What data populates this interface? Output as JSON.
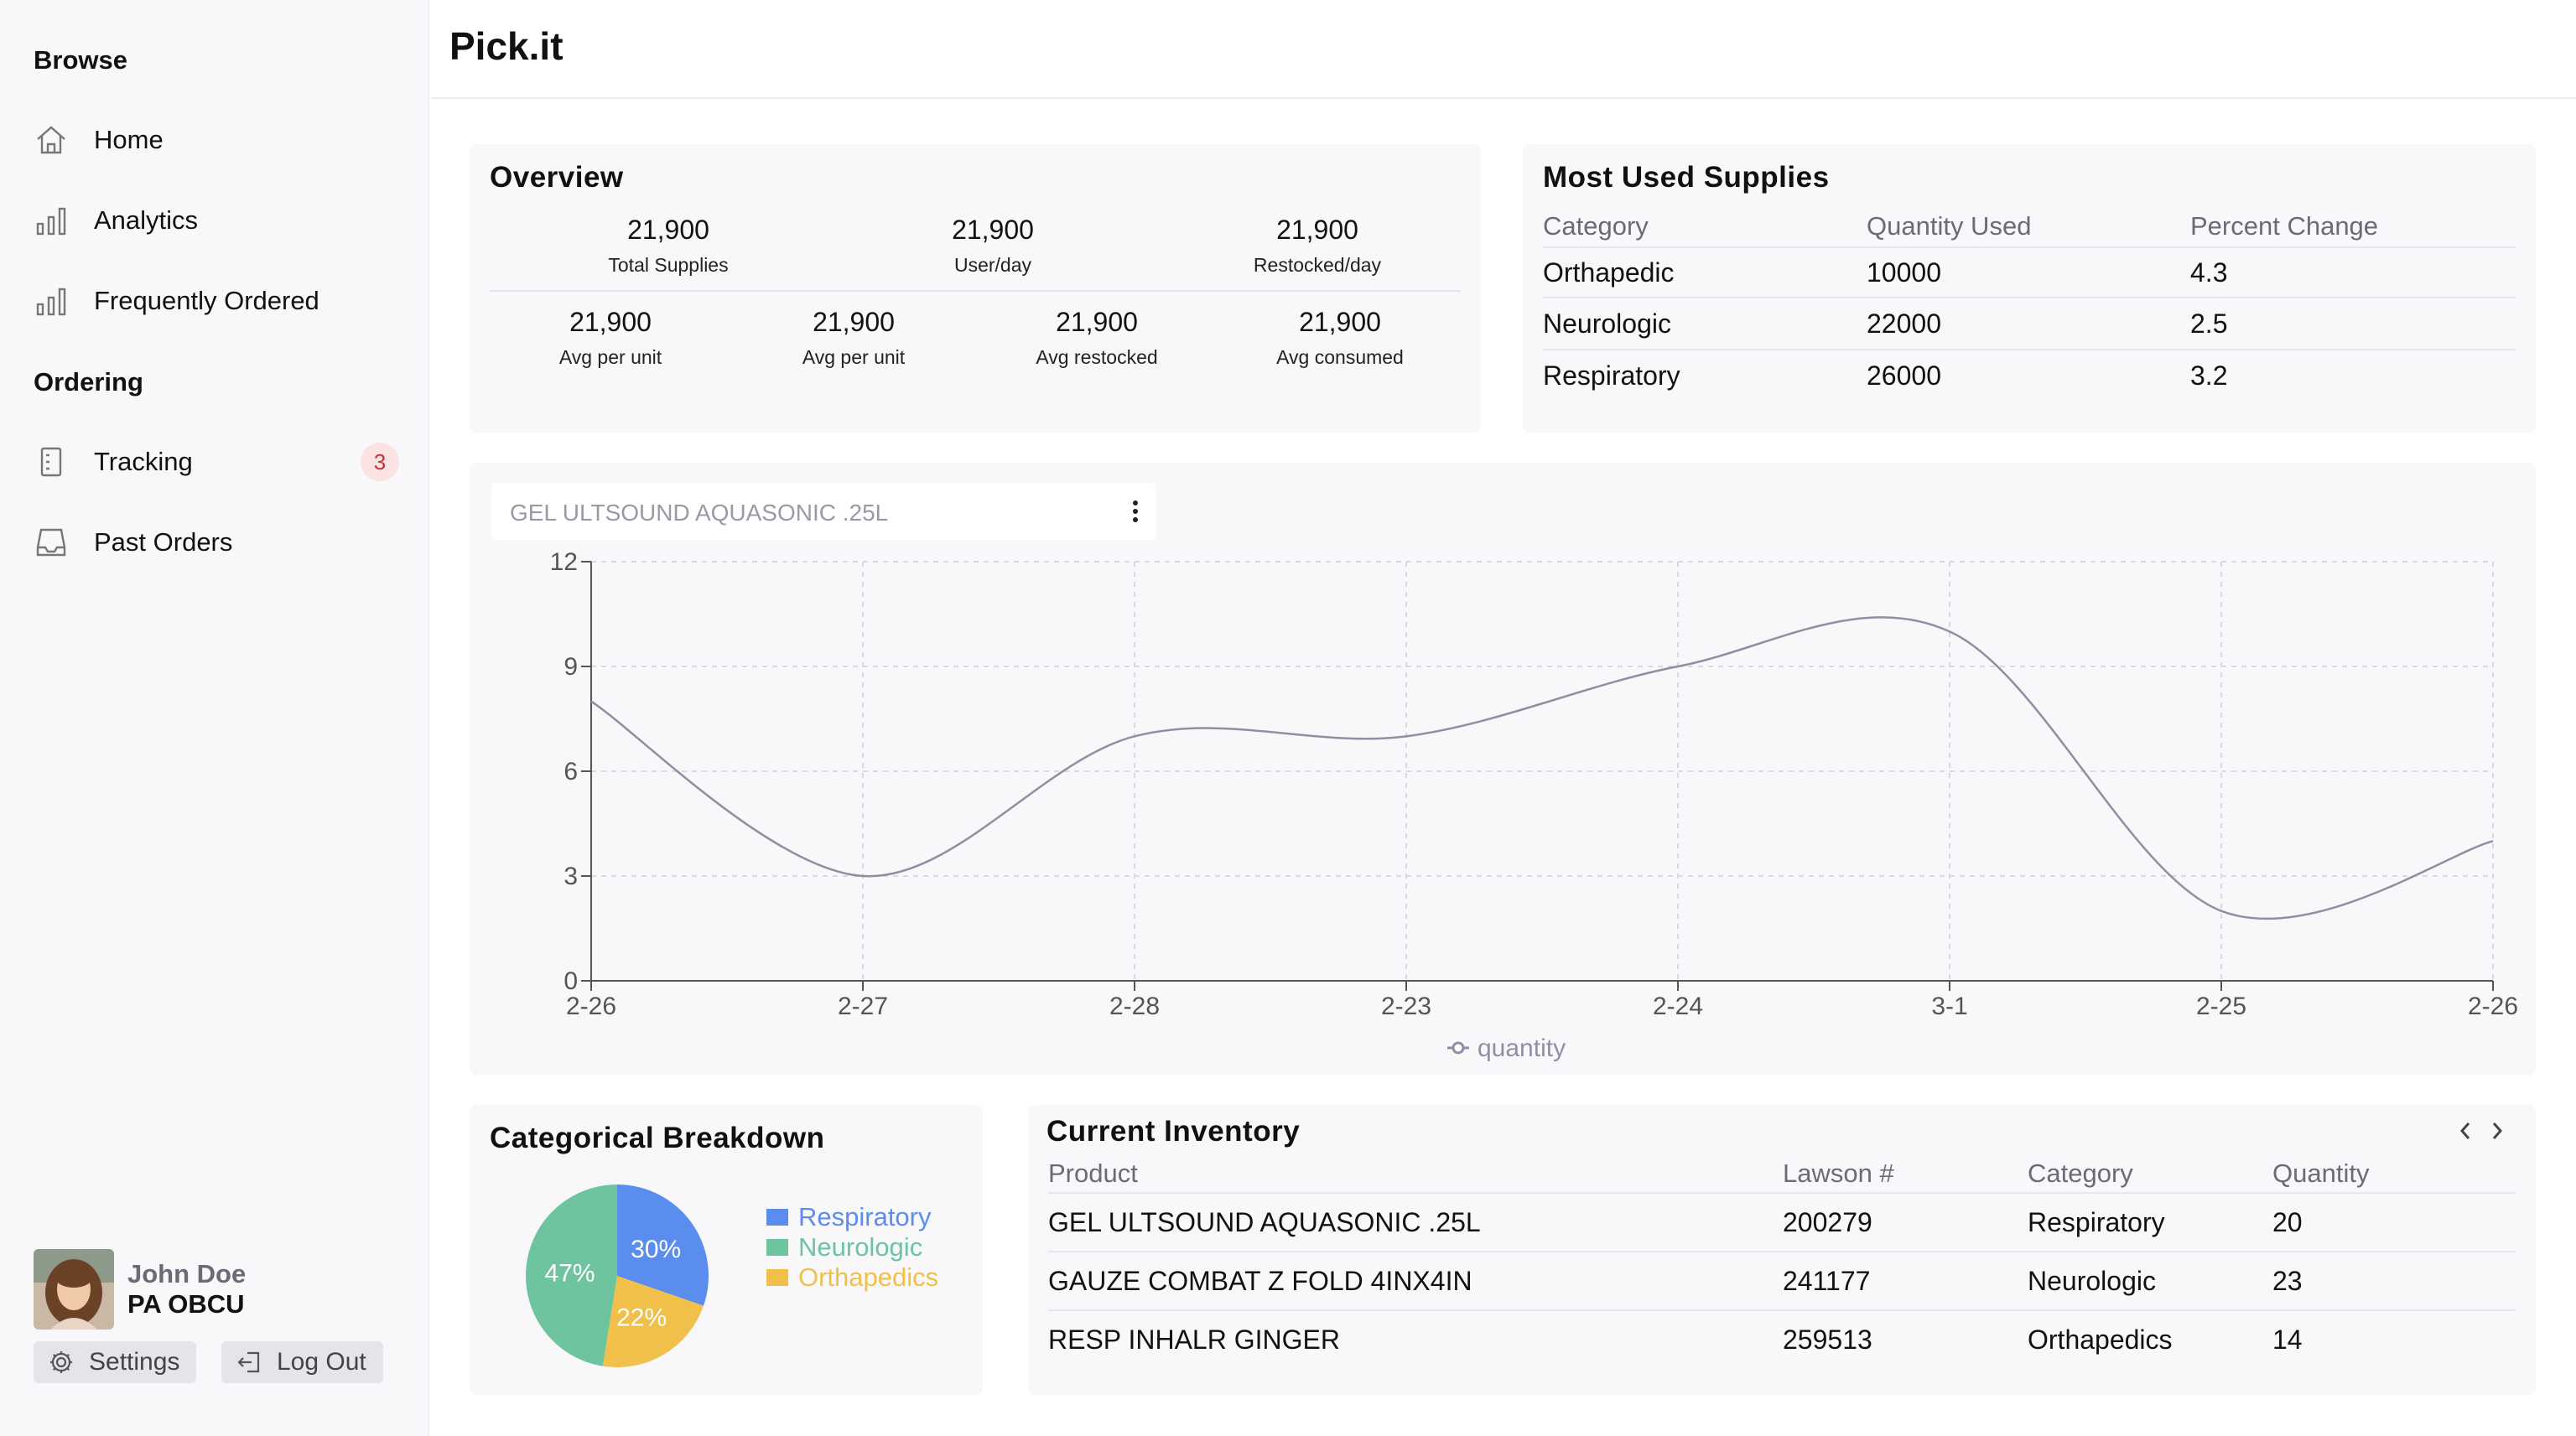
{
  "app": {
    "title": "Pick.it"
  },
  "sidebar": {
    "browse_heading": "Browse",
    "ordering_heading": "Ordering",
    "items": [
      {
        "label": "Home",
        "icon": "home-icon"
      },
      {
        "label": "Analytics",
        "icon": "bar-chart-icon"
      },
      {
        "label": "Frequently Ordered",
        "icon": "bar-chart-icon"
      },
      {
        "label": "Tracking",
        "icon": "receipt-icon",
        "badge": "3"
      },
      {
        "label": "Past Orders",
        "icon": "inbox-icon"
      }
    ],
    "user": {
      "name": "John Doe",
      "role": "PA OBCU"
    },
    "settings_label": "Settings",
    "logout_label": "Log Out"
  },
  "overview": {
    "title": "Overview",
    "top": [
      {
        "value": "21,900",
        "label": "Total Supplies"
      },
      {
        "value": "21,900",
        "label": "User/day"
      },
      {
        "value": "21,900",
        "label": "Restocked/day"
      }
    ],
    "bottom": [
      {
        "value": "21,900",
        "label": "Avg per unit"
      },
      {
        "value": "21,900",
        "label": "Avg per unit"
      },
      {
        "value": "21,900",
        "label": "Avg restocked"
      },
      {
        "value": "21,900",
        "label": "Avg consumed"
      }
    ]
  },
  "most_used": {
    "title": "Most Used Supplies",
    "headers": [
      "Category",
      "Quantity Used",
      "Percent Change"
    ],
    "rows": [
      [
        "Orthapedic",
        "10000",
        "4.3"
      ],
      [
        "Neurologic",
        "22000",
        "2.5"
      ],
      [
        "Respiratory",
        "26000",
        "3.2"
      ]
    ]
  },
  "chart_header": {
    "title": "GEL ULTSOUND AQUASONIC .25L",
    "menu_icon": "kebab-menu-icon"
  },
  "chart_data": {
    "type": "line",
    "title": "GEL ULTSOUND AQUASONIC .25L",
    "categories": [
      "2-26",
      "2-27",
      "2-28",
      "2-23",
      "2-24",
      "3-1",
      "2-25",
      "2-26"
    ],
    "series": [
      {
        "name": "quantity",
        "values": [
          8,
          3,
          7,
          7,
          9,
          10,
          2,
          4
        ]
      }
    ],
    "yticks": [
      "0",
      "3",
      "6",
      "9",
      "12"
    ],
    "ylim": [
      0,
      12
    ],
    "grid": true,
    "legend": "bottom",
    "line_color": "#8f8fa3"
  },
  "breakdown": {
    "title": "Categorical Breakdown",
    "chart_data": {
      "type": "pie",
      "slices": [
        {
          "name": "Respiratory",
          "value": 30,
          "label": "30%",
          "color": "#5b8def"
        },
        {
          "name": "Orthapedics",
          "value": 22,
          "label": "22%",
          "color": "#f0c04a"
        },
        {
          "name": "Neurologic",
          "value": 47,
          "label": "47%",
          "color": "#6fc4a0"
        }
      ],
      "legend": [
        "Respiratory",
        "Neurologic",
        "Orthapedics"
      ],
      "legend_colors": [
        "#5b8def",
        "#6fc4a0",
        "#f0c04a"
      ]
    }
  },
  "inventory": {
    "title": "Current Inventory",
    "headers": [
      "Product",
      "Lawson #",
      "Category",
      "Quantity"
    ],
    "rows": [
      [
        "GEL ULTSOUND AQUASONIC .25L",
        "200279",
        "Respiratory",
        "20"
      ],
      [
        "GAUZE COMBAT Z FOLD 4INX4IN",
        "241177",
        "Neurologic",
        "23"
      ],
      [
        "RESP INHALR GINGER",
        "259513",
        "Orthapedics",
        "14"
      ]
    ],
    "prev_icon": "chevron-left-icon",
    "next_icon": "chevron-right-icon"
  }
}
